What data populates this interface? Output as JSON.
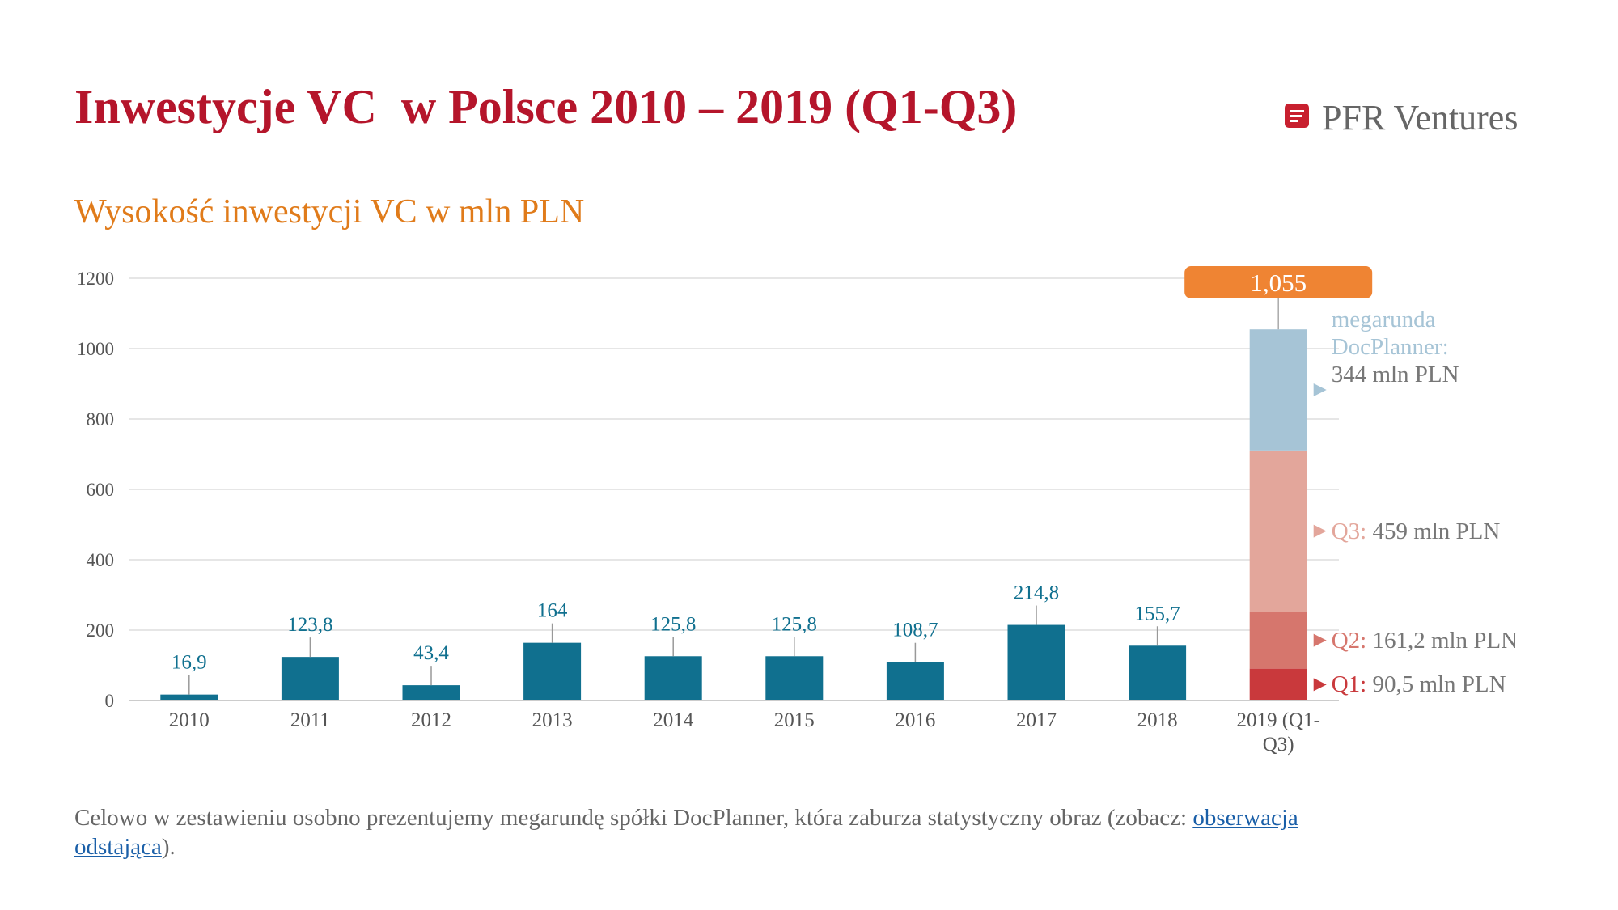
{
  "brand": "PFR Ventures",
  "note": {
    "text_before": "Celowo w zestawieniu osobno prezentujemy megarundę spółki DocPlanner, która zaburza statystyczny obraz (zobacz:",
    "link": "obserwacja odstająca",
    "text_after": ")."
  },
  "chart_data": {
    "type": "bar",
    "title": "Inwestycje VC  w Polsce 2010 – 2019 (Q1-Q3)",
    "subtitle": "Wysokość inwestycji VC w mln PLN",
    "categories": [
      "2010",
      "2011",
      "2012",
      "2013",
      "2014",
      "2015",
      "2016",
      "2017",
      "2018",
      "2019 (Q1-Q3)"
    ],
    "series": [
      {
        "color": "#10708f",
        "values": [
          16.9,
          123.8,
          43.4,
          164,
          125.8,
          125.8,
          108.7,
          214.8,
          155.7,
          null
        ],
        "value_labels": [
          "16,9",
          "123,8",
          "43,4",
          "164",
          "125,8",
          "125,8",
          "108,7",
          "214,8",
          "155,7",
          null
        ]
      },
      {
        "name": "Q1:",
        "color": "#c9393c",
        "values": [
          null,
          null,
          null,
          null,
          null,
          null,
          null,
          null,
          null,
          90.5
        ],
        "value_labels": [
          null,
          null,
          null,
          null,
          null,
          null,
          null,
          null,
          null,
          "90,5 mln PLN"
        ]
      },
      {
        "name": "Q2:",
        "color": "#d6766d",
        "values": [
          null,
          null,
          null,
          null,
          null,
          null,
          null,
          null,
          null,
          161.2
        ],
        "value_labels": [
          null,
          null,
          null,
          null,
          null,
          null,
          null,
          null,
          null,
          "161,2 mln PLN"
        ]
      },
      {
        "name": "Q3:",
        "color": "#e3a69b",
        "values": [
          null,
          null,
          null,
          null,
          null,
          null,
          null,
          null,
          null,
          459
        ],
        "value_labels": [
          null,
          null,
          null,
          null,
          null,
          null,
          null,
          null,
          null,
          "459 mln PLN"
        ]
      },
      {
        "name": "megarunda DocPlanner:",
        "color": "#a6c4d6",
        "values": [
          null,
          null,
          null,
          null,
          null,
          null,
          null,
          null,
          null,
          344
        ],
        "value_labels": [
          null,
          null,
          null,
          null,
          null,
          null,
          null,
          null,
          null,
          "344 mln PLN"
        ]
      }
    ],
    "total": 1055,
    "total_label": "1,055",
    "total_color": "#ef8433",
    "ylim": [
      0,
      1200
    ],
    "yticks": [
      0,
      200,
      400,
      600,
      800,
      1000,
      1200
    ],
    "grid": true
  }
}
